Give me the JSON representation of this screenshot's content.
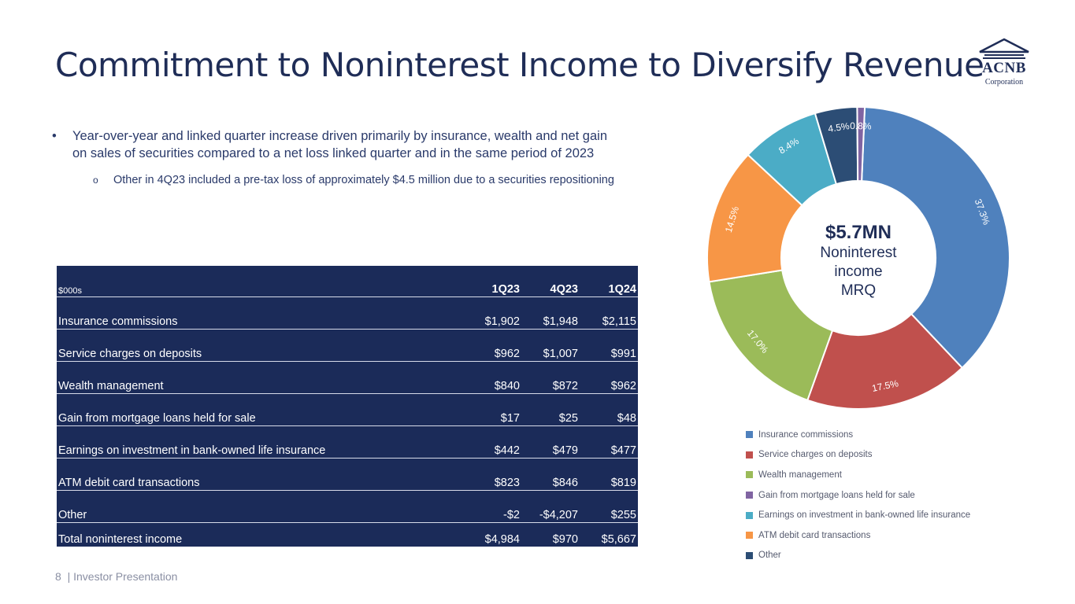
{
  "title": "Commitment to Noninterest Income to Diversify Revenue",
  "logo": {
    "name": "ACNB",
    "sub": "Corporation"
  },
  "bullets": {
    "main": "Year-over-year and linked quarter increase driven primarily by insurance, wealth and net gain on sales of securities compared to a net loss linked quarter and in the same period of 2023",
    "sub": "Other in 4Q23 included a pre-tax loss of approximately $4.5 million due to a securities repositioning"
  },
  "table": {
    "header": [
      "$000s",
      "1Q23",
      "4Q23",
      "1Q24"
    ],
    "rows": [
      [
        "Insurance commissions",
        "$1,902",
        "$1,948",
        "$2,115"
      ],
      [
        "Service charges on deposits",
        "$962",
        "$1,007",
        "$991"
      ],
      [
        "Wealth management",
        "$840",
        "$872",
        "$962"
      ],
      [
        "Gain from mortgage loans held for sale",
        "$17",
        "$25",
        "$48"
      ],
      [
        "Earnings on investment in bank-owned life insurance",
        "$442",
        "$479",
        "$477"
      ],
      [
        "ATM debit card transactions",
        "$823",
        "$846",
        "$819"
      ],
      [
        "Other",
        "-$2",
        "-$4,207",
        "$255"
      ]
    ],
    "total": [
      "Total noninterest income",
      "$4,984",
      "$970",
      "$5,667"
    ]
  },
  "center": {
    "big": "$5.7MN",
    "line1": "Noninterest",
    "line2": "income",
    "line3": "MRQ"
  },
  "footer": {
    "page": "8",
    "text": "| Investor Presentation"
  },
  "chart_data": {
    "type": "pie",
    "categories": [
      "Insurance commissions",
      "Service charges on deposits",
      "Wealth management",
      "Gain from mortgage loans held for sale",
      "Earnings on investment in bank-owned life insurance",
      "ATM debit card transactions",
      "Other"
    ],
    "slices": [
      {
        "label": "Insurance commissions",
        "value": 37.3,
        "text": "37.3%",
        "color": "#4f81bd"
      },
      {
        "label": "Service charges on deposits",
        "value": 17.5,
        "text": "17.5%",
        "color": "#c0504d"
      },
      {
        "label": "Wealth management",
        "value": 17.0,
        "text": "17.0%",
        "color": "#9bbb59"
      },
      {
        "label": "ATM debit card transactions",
        "value": 14.5,
        "text": "14.5%",
        "color": "#f79646"
      },
      {
        "label": "Earnings on investment in bank-owned life insurance",
        "value": 8.4,
        "text": "8.4%",
        "color": "#4bacc6"
      },
      {
        "label": "Other",
        "value": 4.5,
        "text": "4.5%",
        "color": "#2c4d75"
      },
      {
        "label": "Gain from mortgage loans held for sale",
        "value": 0.8,
        "text": "0.8%",
        "color": "#8064a2"
      }
    ],
    "legend": [
      {
        "label": "Insurance commissions",
        "color": "#4f81bd"
      },
      {
        "label": "Service charges on deposits",
        "color": "#c0504d"
      },
      {
        "label": "Wealth management",
        "color": "#9bbb59"
      },
      {
        "label": "Gain from mortgage loans held for sale",
        "color": "#8064a2"
      },
      {
        "label": "Earnings on investment in bank-owned life insurance",
        "color": "#4bacc6"
      },
      {
        "label": "ATM debit card transactions",
        "color": "#f79646"
      },
      {
        "label": "Other",
        "color": "#2c4d75"
      }
    ],
    "legend_position": "bottom"
  }
}
